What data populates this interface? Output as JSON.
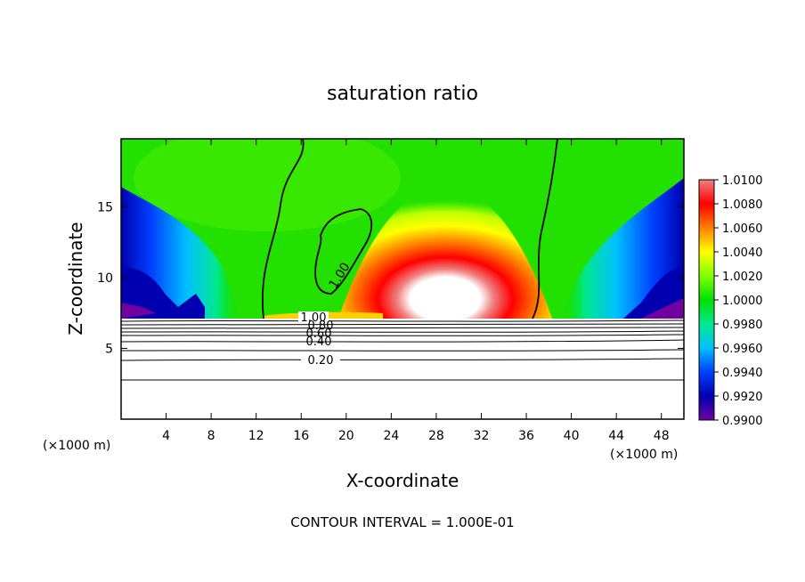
{
  "chart_data": {
    "type": "heatmap",
    "title": "saturation ratio",
    "xlabel": "X-coordinate",
    "ylabel": "Z-coordinate",
    "x_unit": "(×1000 m)",
    "x_unit_right": "(×1000 m)",
    "xlim": [
      0,
      50
    ],
    "ylim": [
      0,
      19.8
    ],
    "x_ticks": [
      4,
      8,
      12,
      16,
      20,
      24,
      28,
      32,
      36,
      40,
      44,
      48
    ],
    "y_ticks": [
      5,
      10,
      15
    ],
    "footer": "CONTOUR INTERVAL = 1.000E-01",
    "colorbar": {
      "ticks": [
        1.01,
        1.008,
        1.006,
        1.004,
        1.002,
        1.0,
        0.998,
        0.996,
        0.994,
        0.992,
        0.99
      ],
      "tick_labels": [
        "1.0100",
        "1.0080",
        "1.0060",
        "1.0040",
        "1.0020",
        "1.0000",
        "0.9980",
        "0.9960",
        "0.9940",
        "0.9920",
        "0.9900"
      ],
      "colors_top_to_bottom": [
        "#f08080",
        "#ff0000",
        "#ff8000",
        "#ffff00",
        "#80ff00",
        "#00e000",
        "#00e890",
        "#00c0ff",
        "#0040ff",
        "#0000b0",
        "#7000a0"
      ]
    },
    "contour_labels": [
      "1.00",
      "1.00",
      "0.80",
      "0.60",
      "0.40",
      "0.20"
    ],
    "contour_levels": [
      0.2,
      0.4,
      0.6,
      0.8,
      1.0
    ],
    "field_features": [
      {
        "name": "supersaturated plume",
        "x_center": 29,
        "z_top": 15,
        "max_ratio": 1.01
      },
      {
        "name": "dry lower corners",
        "x": [
          0,
          50
        ],
        "z": [
          7.5,
          12
        ],
        "min_ratio": 0.99
      },
      {
        "name": "subsaturated stable layer",
        "z": [
          0,
          7.2
        ],
        "ratio_range": [
          0.0,
          1.0
        ]
      }
    ]
  }
}
